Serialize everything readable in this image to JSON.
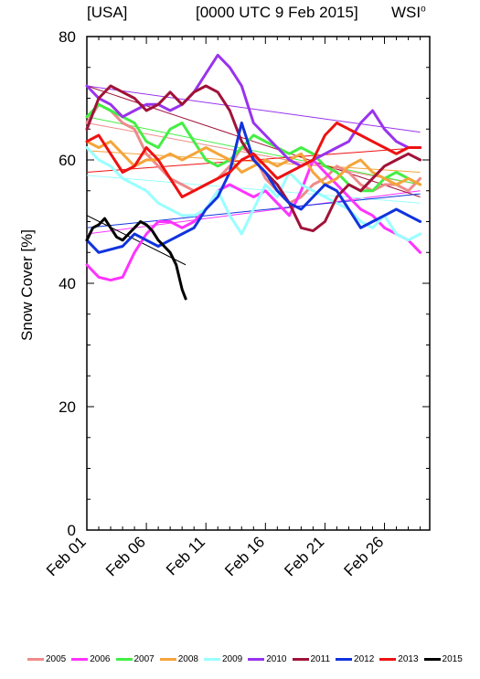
{
  "header": {
    "region": "[USA]",
    "timestamp": "[0000 UTC 9 Feb 2015]",
    "brand": "WSI",
    "brand_mark": "o"
  },
  "chart_data": {
    "type": "line",
    "ylabel": "Snow Cover [%]",
    "xlabel": "",
    "title": "",
    "ylim": [
      0,
      80
    ],
    "xlim": [
      1,
      29.8
    ],
    "y_ticks": [
      0,
      20,
      40,
      60,
      80
    ],
    "x_ticks": [
      {
        "day": 1,
        "label": "Feb 01"
      },
      {
        "day": 6,
        "label": "Feb 06"
      },
      {
        "day": 11,
        "label": "Feb 11"
      },
      {
        "day": 16,
        "label": "Feb 16"
      },
      {
        "day": 21,
        "label": "Feb 21"
      },
      {
        "day": 26,
        "label": "Feb 26"
      }
    ],
    "grid": false,
    "legend_position": "bottom",
    "series": [
      {
        "name": "2005",
        "color": "#f08a8a",
        "x": [
          1,
          2,
          3,
          4,
          5,
          6,
          7,
          8,
          9,
          10,
          11,
          12,
          13,
          14,
          15,
          16,
          17,
          18,
          19,
          20,
          21,
          22,
          23,
          24,
          25,
          26,
          27,
          28,
          29
        ],
        "y": [
          66,
          69,
          68,
          66,
          65,
          61,
          59,
          57,
          56,
          55,
          56,
          57,
          59,
          62,
          61,
          57,
          55,
          53,
          54,
          56,
          57,
          59,
          58,
          56,
          55,
          56,
          56,
          55,
          57
        ],
        "trend": [
          66,
          56
        ]
      },
      {
        "name": "2006",
        "color": "#ff33ff",
        "x": [
          1,
          2,
          3,
          4,
          5,
          6,
          7,
          8,
          9,
          10,
          11,
          12,
          13,
          14,
          15,
          16,
          17,
          18,
          19,
          20,
          21,
          22,
          23,
          24,
          25,
          26,
          27,
          28,
          29
        ],
        "y": [
          43,
          41,
          40.5,
          41,
          45,
          48,
          50,
          50,
          49,
          50,
          52,
          55,
          56,
          55,
          54,
          55,
          53,
          51,
          55,
          60,
          58,
          56,
          54,
          52,
          51,
          49,
          48,
          47,
          45
        ],
        "trend": [
          48,
          55
        ]
      },
      {
        "name": "2007",
        "color": "#44ee44",
        "x": [
          1,
          2,
          3,
          4,
          5,
          6,
          7,
          8,
          9,
          10,
          11,
          12,
          13,
          14,
          15,
          16,
          17,
          18,
          19,
          20,
          21,
          22,
          23,
          24,
          25,
          26,
          27,
          28,
          29
        ],
        "y": [
          67,
          69,
          68,
          67,
          66,
          63,
          62,
          65,
          66,
          63,
          60,
          59,
          60,
          62,
          64,
          63,
          62,
          61,
          62,
          61,
          59,
          58,
          56,
          55,
          55,
          57,
          58,
          57,
          56
        ],
        "trend": [
          67,
          56
        ]
      },
      {
        "name": "2008",
        "color": "#f5a43a",
        "x": [
          1,
          2,
          3,
          4,
          5,
          6,
          7,
          8,
          9,
          10,
          11,
          12,
          13,
          14,
          15,
          16,
          17,
          18,
          19,
          20,
          21,
          22,
          23,
          24,
          25,
          26,
          27,
          28,
          29
        ],
        "y": [
          63,
          62,
          63,
          61,
          59,
          60,
          60,
          61,
          60,
          61,
          62,
          61,
          60,
          58,
          59,
          60,
          59,
          60,
          61,
          58,
          56,
          57,
          59,
          60,
          58,
          57,
          56,
          57,
          56
        ],
        "trend": [
          61.5,
          58
        ]
      },
      {
        "name": "2009",
        "color": "#99ffff",
        "x": [
          1,
          2,
          3,
          4,
          5,
          6,
          7,
          8,
          9,
          10,
          11,
          12,
          13,
          14,
          15,
          16,
          17,
          18,
          19,
          20,
          21,
          22,
          23,
          24,
          25,
          26,
          27,
          28,
          29
        ],
        "y": [
          62,
          60,
          59,
          57,
          56,
          55,
          53,
          52,
          51,
          51,
          52,
          55,
          51,
          48,
          52,
          56,
          54,
          58,
          56,
          55,
          54,
          53,
          52,
          50,
          49,
          51,
          48,
          47,
          48
        ],
        "trend": [
          57.5,
          53
        ]
      },
      {
        "name": "2010",
        "color": "#9933ee",
        "x": [
          1,
          2,
          3,
          4,
          5,
          6,
          7,
          8,
          9,
          10,
          11,
          12,
          13,
          14,
          15,
          16,
          17,
          18,
          19,
          20,
          21,
          22,
          23,
          24,
          25,
          26,
          27,
          28,
          29
        ],
        "y": [
          72,
          70,
          69,
          67,
          68,
          69,
          69,
          68,
          69,
          71,
          74,
          77,
          75,
          72,
          66,
          64,
          62,
          60,
          59,
          60,
          61,
          62,
          63,
          66,
          68,
          65,
          63,
          62,
          62
        ],
        "trend": [
          72,
          64.5
        ]
      },
      {
        "name": "2011",
        "color": "#a01238",
        "x": [
          1,
          2,
          3,
          4,
          5,
          6,
          7,
          8,
          9,
          10,
          11,
          12,
          13,
          14,
          15,
          16,
          17,
          18,
          19,
          20,
          21,
          22,
          23,
          24,
          25,
          26,
          27,
          28,
          29
        ],
        "y": [
          65,
          70,
          72,
          71,
          70,
          68,
          69,
          71,
          69,
          71,
          72,
          71,
          68,
          63,
          60,
          58,
          56,
          53,
          49,
          48.5,
          50,
          54,
          56,
          55,
          57,
          59,
          60,
          61,
          60
        ],
        "trend": [
          72,
          54
        ]
      },
      {
        "name": "2012",
        "color": "#1133dd",
        "x": [
          1,
          2,
          3,
          4,
          5,
          6,
          7,
          8,
          9,
          10,
          11,
          12,
          13,
          14,
          15,
          16,
          17,
          18,
          19,
          20,
          21,
          22,
          23,
          24,
          25,
          26,
          27,
          28,
          29
        ],
        "y": [
          47,
          45,
          45.5,
          46,
          48,
          47,
          46,
          47,
          48,
          49,
          52,
          54,
          58,
          66,
          60,
          58,
          55,
          53,
          52,
          54,
          56,
          55,
          52,
          49,
          50,
          51,
          52,
          51,
          50
        ],
        "trend": [
          49,
          54.5
        ]
      },
      {
        "name": "2013",
        "color": "#ee1111",
        "x": [
          1,
          2,
          3,
          4,
          5,
          6,
          7,
          8,
          9,
          10,
          11,
          12,
          13,
          14,
          15,
          16,
          17,
          18,
          19,
          20,
          21,
          22,
          23,
          24,
          25,
          26,
          27,
          28,
          29
        ],
        "y": [
          63,
          64,
          61,
          58,
          59,
          62,
          60,
          57,
          54,
          55,
          56,
          57,
          58,
          60,
          61,
          59,
          57,
          58,
          59,
          60,
          64,
          66,
          65,
          64,
          63,
          62,
          61,
          62,
          62
        ],
        "trend": [
          58,
          62
        ]
      },
      {
        "name": "2015",
        "color": "#000000",
        "x": [
          1,
          1.5,
          2,
          2.5,
          3,
          3.5,
          4,
          4.5,
          5,
          5.5,
          6,
          6.5,
          7,
          7.5,
          8,
          8.5,
          9,
          9.3
        ],
        "y": [
          47,
          49,
          49.5,
          50.5,
          49,
          47.5,
          47,
          48,
          49,
          50,
          49.5,
          48.5,
          47,
          46,
          45,
          43,
          39,
          37.5
        ],
        "trend": [
          51,
          43
        ]
      }
    ]
  }
}
